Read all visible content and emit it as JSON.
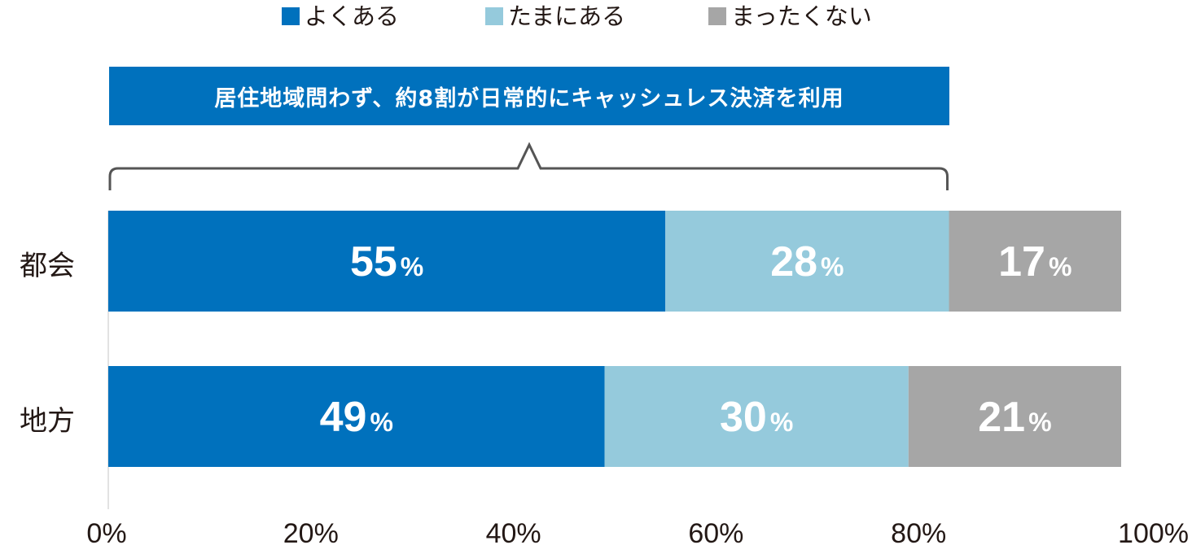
{
  "legend": [
    {
      "label": "よくある",
      "color": "#0071bd"
    },
    {
      "label": "たまにある",
      "color": "#95cadc"
    },
    {
      "label": "まったくない",
      "color": "#a6a6a6"
    }
  ],
  "callout": {
    "text": "居住地域問わず、約8割が日常的にキャッシュレス決済を利用",
    "color": "#0071bd"
  },
  "chart_data": {
    "type": "bar",
    "orientation": "horizontal",
    "stacked": true,
    "categories": [
      "都会",
      "地方"
    ],
    "series": [
      {
        "name": "よくある",
        "values": [
          55,
          49
        ],
        "color": "#0071bd"
      },
      {
        "name": "たまにある",
        "values": [
          28,
          30
        ],
        "color": "#95cadc"
      },
      {
        "name": "まったくない",
        "values": [
          17,
          21
        ],
        "color": "#a6a6a6"
      }
    ],
    "value_suffix": "%",
    "xlim": [
      0,
      100
    ],
    "xticks": [
      "0%",
      "20%",
      "40%",
      "60%",
      "80%",
      "100%"
    ],
    "grid": false,
    "legend_position": "top"
  }
}
